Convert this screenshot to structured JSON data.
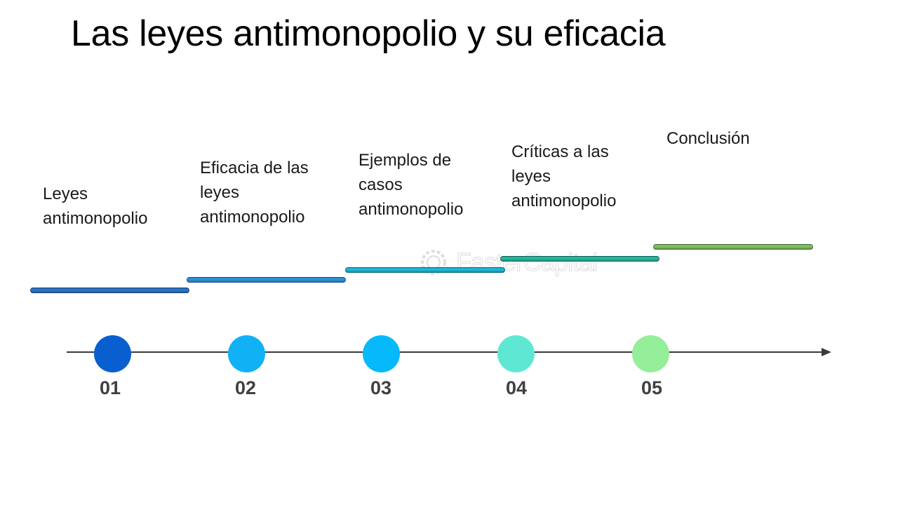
{
  "title": "Las leyes antimonopolio y su eficacia",
  "watermark": {
    "text": "FasterCapital",
    "icon": "gear-icon"
  },
  "steps": [
    {
      "number": "01",
      "lines": [
        "Leyes",
        "antimonopolio"
      ],
      "bar_color": "#2a74c6",
      "dot_color": "#0a5fd0"
    },
    {
      "number": "02",
      "lines": [
        "Eficacia de las",
        "leyes",
        "antimonopolio"
      ],
      "bar_color": "#2d8fd6",
      "dot_color": "#11b2f5"
    },
    {
      "number": "03",
      "lines": [
        "Ejemplos de",
        "casos",
        "antimonopolio"
      ],
      "bar_color": "#21b3d3",
      "dot_color": "#05b9fb"
    },
    {
      "number": "04",
      "lines": [
        "Críticas a las",
        "leyes",
        "antimonopolio"
      ],
      "bar_color": "#27b49c",
      "dot_color": "#5ee8d3"
    },
    {
      "number": "05",
      "lines": [
        "Conclusión"
      ],
      "bar_color": "#7fbe5f",
      "dot_color": "#95ee9a"
    }
  ]
}
